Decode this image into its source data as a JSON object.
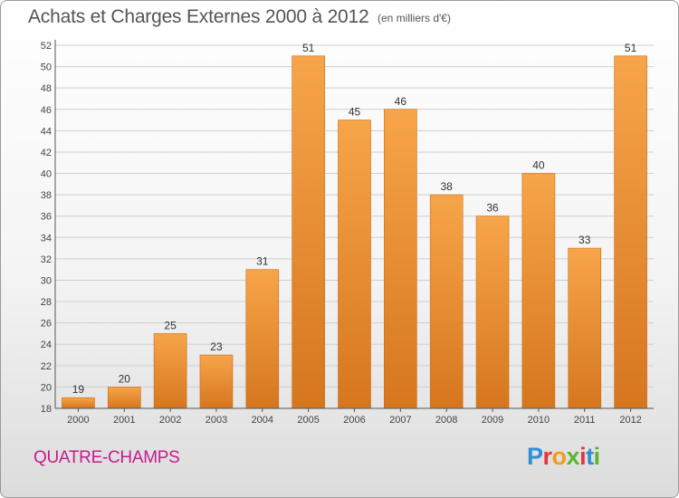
{
  "header": {
    "title": "Achats et Charges Externes 2000 à 2012",
    "unit_note": "(en milliers d'€)"
  },
  "footer": {
    "commune": "QUATRE-CHAMPS",
    "brand_letters": [
      "P",
      "r",
      "o",
      "x",
      "i",
      "t",
      "i"
    ],
    "brand_colors": [
      "#2e8fd6",
      "#e8343a",
      "#f29b1d",
      "#5ab52f",
      "#e8343a",
      "#2e8fd6",
      "#5ab52f"
    ]
  },
  "colors": {
    "bar_light": "#f7a54a",
    "bar_dark": "#d6761e",
    "bar_edge": "#c96a14",
    "grid": "#cfcfcf"
  },
  "chart_data": {
    "type": "bar",
    "categories": [
      "2000",
      "2001",
      "2002",
      "2003",
      "2004",
      "2005",
      "2006",
      "2007",
      "2008",
      "2009",
      "2010",
      "2011",
      "2012"
    ],
    "values": [
      19,
      20,
      25,
      23,
      31,
      51,
      45,
      46,
      38,
      36,
      40,
      33,
      51
    ],
    "value_labels": [
      "19",
      "20",
      "25",
      "23",
      "31",
      "51",
      "45",
      "46",
      "38",
      "36",
      "40",
      "33",
      "51"
    ],
    "ylim": [
      18,
      52
    ],
    "yticks": [
      "18",
      "20",
      "22",
      "24",
      "26",
      "28",
      "30",
      "32",
      "34",
      "36",
      "38",
      "40",
      "42",
      "44",
      "46",
      "48",
      "50",
      "52"
    ],
    "grid": "horizontal"
  }
}
